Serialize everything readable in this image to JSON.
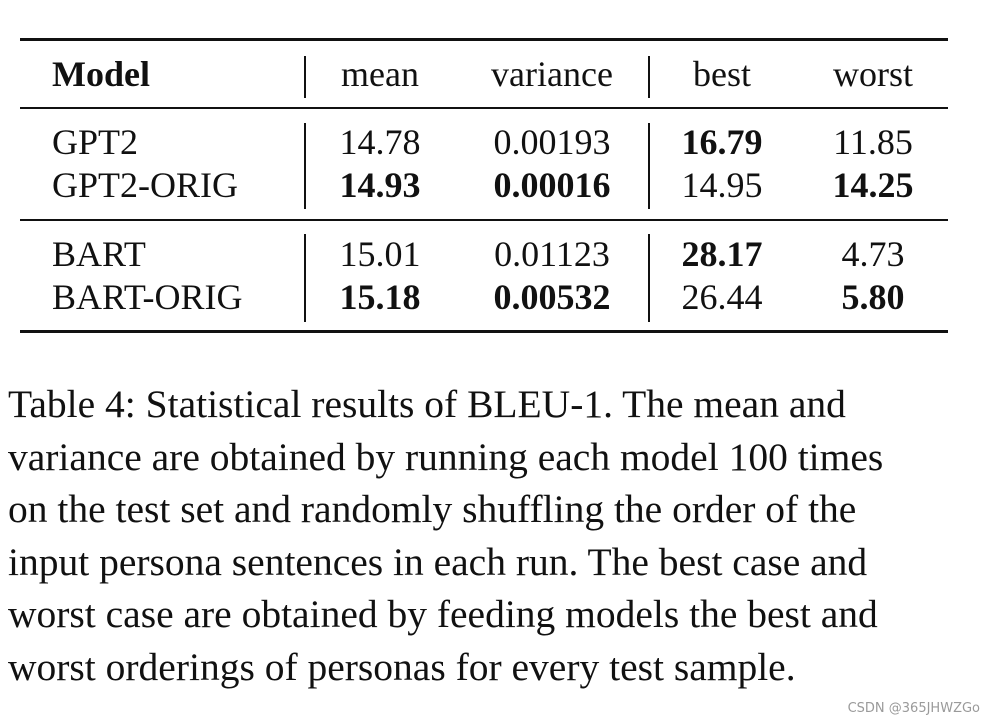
{
  "table": {
    "headers": {
      "model": "Model",
      "mean": "mean",
      "variance": "variance",
      "best": "best",
      "worst": "worst"
    },
    "groups": [
      {
        "rows": [
          {
            "model": "GPT2",
            "mean": {
              "value": "14.78",
              "bold": false
            },
            "variance": {
              "value": "0.00193",
              "bold": false
            },
            "best": {
              "value": "16.79",
              "bold": true
            },
            "worst": {
              "value": "11.85",
              "bold": false
            }
          },
          {
            "model": "GPT2-ORIG",
            "mean": {
              "value": "14.93",
              "bold": true
            },
            "variance": {
              "value": "0.00016",
              "bold": true
            },
            "best": {
              "value": "14.95",
              "bold": false
            },
            "worst": {
              "value": "14.25",
              "bold": true
            }
          }
        ]
      },
      {
        "rows": [
          {
            "model": "BART",
            "mean": {
              "value": "15.01",
              "bold": false
            },
            "variance": {
              "value": "0.01123",
              "bold": false
            },
            "best": {
              "value": "28.17",
              "bold": true
            },
            "worst": {
              "value": "4.73",
              "bold": false
            }
          },
          {
            "model": "BART-ORIG",
            "mean": {
              "value": "15.18",
              "bold": true
            },
            "variance": {
              "value": "0.00532",
              "bold": true
            },
            "best": {
              "value": "26.44",
              "bold": false
            },
            "worst": {
              "value": "5.80",
              "bold": true
            }
          }
        ]
      }
    ]
  },
  "caption": {
    "lines": [
      "Table 4:  Statistical results of BLEU-1. The mean and",
      "variance are obtained by running each model 100 times",
      "on the test set and randomly shuffling the order of the",
      "input persona sentences in each run. The best case and",
      "worst case are obtained by feeding models the best and",
      "worst orderings of personas for every test sample."
    ]
  },
  "watermark": "CSDN @365JHWZGo"
}
